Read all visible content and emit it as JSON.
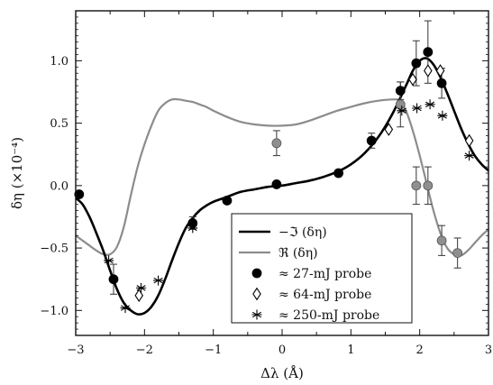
{
  "chart_data": {
    "type": "line",
    "title": "",
    "xlabel": "Δλ (Å)",
    "ylabel": "δη (×10⁻⁴)",
    "xlim": [
      -3,
      3
    ],
    "ylim": [
      -1.2,
      1.4
    ],
    "x_ticks": [
      -3,
      -2,
      -1,
      0,
      1,
      2,
      3
    ],
    "x_tick_labels": [
      "−3",
      "−2",
      "−1",
      "0",
      "1",
      "2",
      "3"
    ],
    "y_ticks": [
      -1.0,
      -0.5,
      0.0,
      0.5,
      1.0
    ],
    "y_tick_labels": [
      "−1.0",
      "−0.5",
      "0.0",
      "0.5",
      "1.0"
    ],
    "grid": false,
    "legend_position": "bottom-center",
    "colors": {
      "imag": "#000000",
      "real": "#8c8c8c",
      "marker_dark": "#000000",
      "marker_gray": "#8f8f8f"
    },
    "lines": [
      {
        "name": "−ℑ (δη)",
        "color": "#000000",
        "points": [
          [
            -3.0,
            -0.1
          ],
          [
            -2.9,
            -0.15
          ],
          [
            -2.8,
            -0.25
          ],
          [
            -2.7,
            -0.38
          ],
          [
            -2.6,
            -0.52
          ],
          [
            -2.5,
            -0.68
          ],
          [
            -2.4,
            -0.83
          ],
          [
            -2.3,
            -0.94
          ],
          [
            -2.2,
            -1.0
          ],
          [
            -2.1,
            -1.03
          ],
          [
            -2.0,
            -1.02
          ],
          [
            -1.9,
            -0.97
          ],
          [
            -1.8,
            -0.88
          ],
          [
            -1.7,
            -0.75
          ],
          [
            -1.6,
            -0.6
          ],
          [
            -1.5,
            -0.46
          ],
          [
            -1.4,
            -0.34
          ],
          [
            -1.3,
            -0.26
          ],
          [
            -1.2,
            -0.2
          ],
          [
            -1.1,
            -0.16
          ],
          [
            -1.0,
            -0.13
          ],
          [
            -0.8,
            -0.09
          ],
          [
            -0.6,
            -0.05
          ],
          [
            -0.4,
            -0.03
          ],
          [
            -0.2,
            -0.01
          ],
          [
            0.0,
            0.0
          ],
          [
            0.2,
            0.02
          ],
          [
            0.4,
            0.04
          ],
          [
            0.6,
            0.07
          ],
          [
            0.8,
            0.11
          ],
          [
            1.0,
            0.17
          ],
          [
            1.2,
            0.26
          ],
          [
            1.4,
            0.39
          ],
          [
            1.6,
            0.57
          ],
          [
            1.8,
            0.8
          ],
          [
            1.9,
            0.92
          ],
          [
            2.0,
            1.0
          ],
          [
            2.1,
            1.02
          ],
          [
            2.2,
            0.97
          ],
          [
            2.3,
            0.87
          ],
          [
            2.4,
            0.74
          ],
          [
            2.5,
            0.6
          ],
          [
            2.6,
            0.46
          ],
          [
            2.7,
            0.34
          ],
          [
            2.8,
            0.24
          ],
          [
            2.9,
            0.17
          ],
          [
            3.0,
            0.12
          ]
        ]
      },
      {
        "name": "ℜ (δη)",
        "color": "#8c8c8c",
        "points": [
          [
            -3.0,
            -0.4
          ],
          [
            -2.9,
            -0.44
          ],
          [
            -2.8,
            -0.48
          ],
          [
            -2.7,
            -0.52
          ],
          [
            -2.6,
            -0.55
          ],
          [
            -2.5,
            -0.55
          ],
          [
            -2.4,
            -0.49
          ],
          [
            -2.3,
            -0.33
          ],
          [
            -2.2,
            -0.08
          ],
          [
            -2.1,
            0.15
          ],
          [
            -2.0,
            0.33
          ],
          [
            -1.9,
            0.48
          ],
          [
            -1.8,
            0.6
          ],
          [
            -1.7,
            0.66
          ],
          [
            -1.6,
            0.69
          ],
          [
            -1.5,
            0.69
          ],
          [
            -1.4,
            0.68
          ],
          [
            -1.3,
            0.67
          ],
          [
            -1.2,
            0.65
          ],
          [
            -1.1,
            0.63
          ],
          [
            -1.0,
            0.6
          ],
          [
            -0.8,
            0.55
          ],
          [
            -0.6,
            0.51
          ],
          [
            -0.4,
            0.49
          ],
          [
            -0.2,
            0.48
          ],
          [
            0.0,
            0.48
          ],
          [
            0.2,
            0.49
          ],
          [
            0.4,
            0.52
          ],
          [
            0.6,
            0.56
          ],
          [
            0.8,
            0.6
          ],
          [
            1.0,
            0.63
          ],
          [
            1.2,
            0.66
          ],
          [
            1.4,
            0.68
          ],
          [
            1.6,
            0.69
          ],
          [
            1.7,
            0.68
          ],
          [
            1.8,
            0.6
          ],
          [
            1.9,
            0.44
          ],
          [
            2.0,
            0.24
          ],
          [
            2.1,
            0.02
          ],
          [
            2.2,
            -0.2
          ],
          [
            2.3,
            -0.38
          ],
          [
            2.4,
            -0.5
          ],
          [
            2.5,
            -0.55
          ],
          [
            2.6,
            -0.56
          ],
          [
            2.7,
            -0.52
          ],
          [
            2.8,
            -0.46
          ],
          [
            2.9,
            -0.4
          ],
          [
            3.0,
            -0.35
          ]
        ]
      }
    ],
    "series": [
      {
        "name": "≈ 27-mJ probe",
        "marker": "filled-circle",
        "points": [
          {
            "x": -2.95,
            "y": -0.07,
            "color": "#000000"
          },
          {
            "x": -2.45,
            "y": -0.75,
            "err": 0.12,
            "color": "#000000"
          },
          {
            "x": -1.3,
            "y": -0.3,
            "err": 0.05,
            "color": "#000000"
          },
          {
            "x": -0.8,
            "y": -0.12,
            "color": "#000000"
          },
          {
            "x": -0.08,
            "y": 0.01,
            "color": "#000000"
          },
          {
            "x": 0.82,
            "y": 0.1,
            "color": "#000000"
          },
          {
            "x": 1.3,
            "y": 0.36,
            "err": 0.06,
            "color": "#000000"
          },
          {
            "x": 1.72,
            "y": 0.76,
            "err": 0.07,
            "color": "#000000"
          },
          {
            "x": 1.95,
            "y": 0.98,
            "err": 0.18,
            "color": "#000000"
          },
          {
            "x": 2.12,
            "y": 1.07,
            "err": 0.25,
            "color": "#000000"
          },
          {
            "x": 2.32,
            "y": 0.82,
            "err": 0.12,
            "color": "#000000"
          },
          {
            "x": -0.08,
            "y": 0.34,
            "err": 0.1,
            "color": "#8f8f8f"
          },
          {
            "x": 1.72,
            "y": 0.65,
            "err": 0.18,
            "color": "#8f8f8f"
          },
          {
            "x": 1.95,
            "y": 0.0,
            "err": 0.15,
            "color": "#8f8f8f"
          },
          {
            "x": 2.12,
            "y": 0.0,
            "err": 0.15,
            "color": "#8f8f8f"
          },
          {
            "x": 2.32,
            "y": -0.44,
            "err": 0.12,
            "color": "#8f8f8f"
          },
          {
            "x": 2.55,
            "y": -0.54,
            "err": 0.12,
            "color": "#8f8f8f"
          }
        ]
      },
      {
        "name": "≈ 64-mJ probe",
        "marker": "open-diamond",
        "points": [
          {
            "x": -2.08,
            "y": -0.88
          },
          {
            "x": 1.55,
            "y": 0.45
          },
          {
            "x": 1.9,
            "y": 0.85
          },
          {
            "x": 2.12,
            "y": 0.92
          },
          {
            "x": 2.3,
            "y": 0.92
          },
          {
            "x": 2.72,
            "y": 0.36
          }
        ]
      },
      {
        "name": "≈ 250-mJ probe",
        "marker": "asterisk",
        "points": [
          {
            "x": -2.52,
            "y": -0.6
          },
          {
            "x": -2.28,
            "y": -0.98
          },
          {
            "x": -2.05,
            "y": -0.82
          },
          {
            "x": -1.8,
            "y": -0.76
          },
          {
            "x": -1.3,
            "y": -0.34
          },
          {
            "x": 1.74,
            "y": 0.6
          },
          {
            "x": 1.96,
            "y": 0.62
          },
          {
            "x": 2.15,
            "y": 0.65
          },
          {
            "x": 2.33,
            "y": 0.56
          },
          {
            "x": 2.72,
            "y": 0.24
          }
        ]
      }
    ]
  }
}
